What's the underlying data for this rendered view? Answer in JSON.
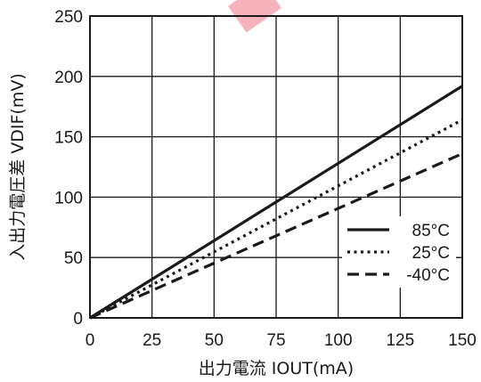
{
  "chart_data": {
    "type": "line",
    "xlabel": "出力電流 IOUT(mA)",
    "ylabel": "入出力電圧差 VDIF(mV)",
    "xlim": [
      0,
      150
    ],
    "ylim": [
      0,
      250
    ],
    "x_ticks": [
      "0",
      "25",
      "50",
      "75",
      "100",
      "125",
      "150"
    ],
    "y_ticks": [
      "0",
      "50",
      "100",
      "150",
      "200",
      "250"
    ],
    "grid": true,
    "legend_position": "bottom-right",
    "series": [
      {
        "name": "85°C",
        "style": "solid",
        "x": [
          0,
          150
        ],
        "y": [
          0,
          192
        ]
      },
      {
        "name": "25°C",
        "style": "dotted",
        "x": [
          0,
          150
        ],
        "y": [
          0,
          164
        ]
      },
      {
        "name": "-40°C",
        "style": "dashed",
        "x": [
          0,
          150
        ],
        "y": [
          0,
          136
        ]
      }
    ]
  }
}
